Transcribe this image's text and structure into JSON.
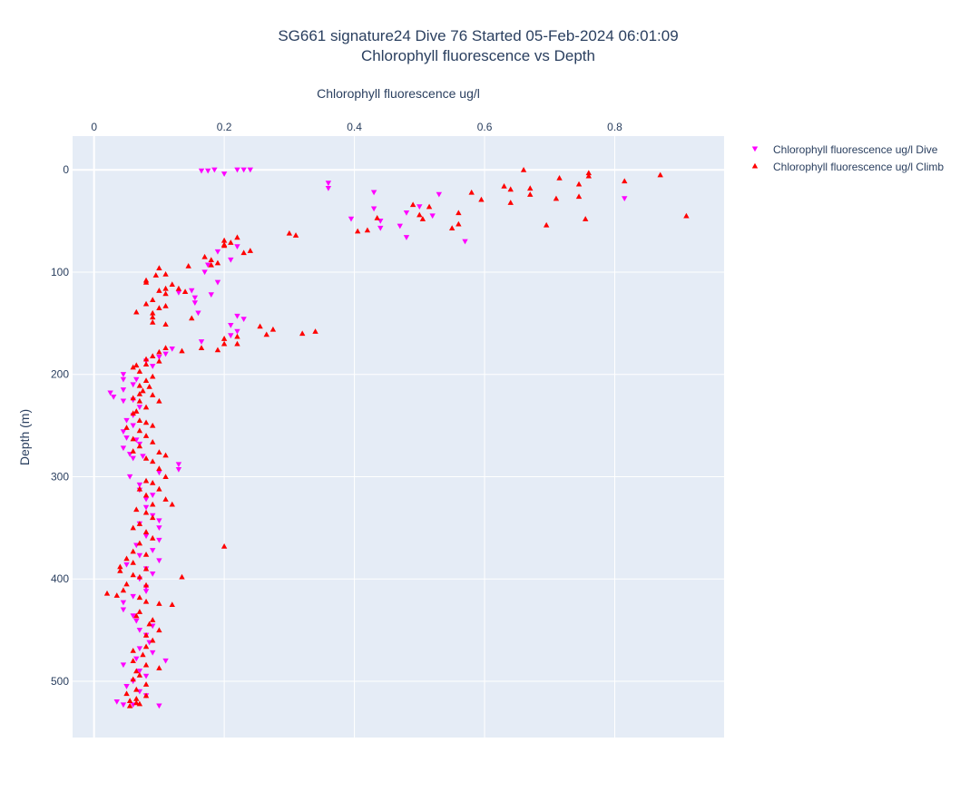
{
  "chart_data": {
    "type": "scatter",
    "title_line1": "SG661 signature24 Dive 76 Started 05-Feb-2024 06:01:09",
    "title_line2": "Chlorophyll fluorescence vs Depth",
    "xlabel": "Chlorophyll fluorescence ug/l",
    "ylabel": "Depth (m)",
    "xlim": [
      -0.033,
      0.968
    ],
    "ylim": [
      555,
      -33
    ],
    "x_axis_position": "top",
    "y_reversed": true,
    "grid": true,
    "legend_position": "top-right",
    "plot_background": "#e5ecf6",
    "xticks": [
      {
        "value": 0,
        "label": "0"
      },
      {
        "value": 0.2,
        "label": "0.2"
      },
      {
        "value": 0.4,
        "label": "0.4"
      },
      {
        "value": 0.6,
        "label": "0.6"
      },
      {
        "value": 0.8,
        "label": "0.8"
      }
    ],
    "yticks": [
      {
        "value": 0,
        "label": "0"
      },
      {
        "value": 100,
        "label": "100"
      },
      {
        "value": 200,
        "label": "200"
      },
      {
        "value": 300,
        "label": "300"
      },
      {
        "value": 400,
        "label": "400"
      },
      {
        "value": 500,
        "label": "500"
      }
    ],
    "series": [
      {
        "name": "Chlorophyll fluorescence ug/l Dive",
        "color": "#ff00ff",
        "marker": "triangle-down",
        "points": [
          [
            0.165,
            1
          ],
          [
            0.175,
            1
          ],
          [
            0.185,
            0
          ],
          [
            0.2,
            4
          ],
          [
            0.22,
            0
          ],
          [
            0.23,
            0
          ],
          [
            0.24,
            0
          ],
          [
            0.36,
            13
          ],
          [
            0.36,
            18
          ],
          [
            0.43,
            22
          ],
          [
            0.43,
            38
          ],
          [
            0.44,
            50
          ],
          [
            0.44,
            57
          ],
          [
            0.47,
            55
          ],
          [
            0.48,
            42
          ],
          [
            0.48,
            66
          ],
          [
            0.5,
            36
          ],
          [
            0.52,
            45
          ],
          [
            0.53,
            24
          ],
          [
            0.57,
            70
          ],
          [
            0.815,
            28
          ],
          [
            0.395,
            48
          ],
          [
            0.22,
            75
          ],
          [
            0.21,
            88
          ],
          [
            0.19,
            80
          ],
          [
            0.175,
            93
          ],
          [
            0.17,
            100
          ],
          [
            0.19,
            110
          ],
          [
            0.15,
            118
          ],
          [
            0.155,
            125
          ],
          [
            0.155,
            130
          ],
          [
            0.16,
            140
          ],
          [
            0.18,
            122
          ],
          [
            0.13,
            120
          ],
          [
            0.22,
            143
          ],
          [
            0.23,
            146
          ],
          [
            0.21,
            152
          ],
          [
            0.22,
            158
          ],
          [
            0.21,
            162
          ],
          [
            0.165,
            168
          ],
          [
            0.12,
            175
          ],
          [
            0.11,
            180
          ],
          [
            0.1,
            183
          ],
          [
            0.09,
            192
          ],
          [
            0.08,
            187
          ],
          [
            0.045,
            200
          ],
          [
            0.045,
            205
          ],
          [
            0.065,
            205
          ],
          [
            0.06,
            210
          ],
          [
            0.025,
            218
          ],
          [
            0.045,
            215
          ],
          [
            0.03,
            222
          ],
          [
            0.045,
            226
          ],
          [
            0.06,
            225
          ],
          [
            0.07,
            232
          ],
          [
            0.06,
            240
          ],
          [
            0.05,
            245
          ],
          [
            0.06,
            250
          ],
          [
            0.045,
            256
          ],
          [
            0.05,
            262
          ],
          [
            0.065,
            264
          ],
          [
            0.07,
            268
          ],
          [
            0.045,
            272
          ],
          [
            0.055,
            278
          ],
          [
            0.06,
            282
          ],
          [
            0.075,
            280
          ],
          [
            0.13,
            288
          ],
          [
            0.13,
            293
          ],
          [
            0.1,
            296
          ],
          [
            0.055,
            300
          ],
          [
            0.07,
            308
          ],
          [
            0.07,
            313
          ],
          [
            0.09,
            318
          ],
          [
            0.08,
            322
          ],
          [
            0.08,
            330
          ],
          [
            0.09,
            338
          ],
          [
            0.1,
            343
          ],
          [
            0.1,
            350
          ],
          [
            0.07,
            346
          ],
          [
            0.08,
            358
          ],
          [
            0.1,
            362
          ],
          [
            0.065,
            367
          ],
          [
            0.09,
            372
          ],
          [
            0.07,
            377
          ],
          [
            0.1,
            382
          ],
          [
            0.05,
            386
          ],
          [
            0.08,
            390
          ],
          [
            0.09,
            395
          ],
          [
            0.07,
            400
          ],
          [
            0.08,
            408
          ],
          [
            0.08,
            412
          ],
          [
            0.06,
            417
          ],
          [
            0.045,
            423
          ],
          [
            0.045,
            430
          ],
          [
            0.06,
            436
          ],
          [
            0.065,
            441
          ],
          [
            0.09,
            446
          ],
          [
            0.07,
            450
          ],
          [
            0.08,
            455
          ],
          [
            0.085,
            462
          ],
          [
            0.07,
            468
          ],
          [
            0.09,
            472
          ],
          [
            0.065,
            478
          ],
          [
            0.11,
            480
          ],
          [
            0.045,
            484
          ],
          [
            0.07,
            490
          ],
          [
            0.08,
            495
          ],
          [
            0.06,
            500
          ],
          [
            0.05,
            505
          ],
          [
            0.07,
            510
          ],
          [
            0.08,
            514
          ],
          [
            0.035,
            520
          ],
          [
            0.045,
            523
          ],
          [
            0.06,
            523
          ],
          [
            0.1,
            524
          ]
        ]
      },
      {
        "name": "Chlorophyll fluorescence ug/l Climb",
        "color": "#ff0000",
        "marker": "triangle-up",
        "points": [
          [
            0.66,
            0
          ],
          [
            0.76,
            3
          ],
          [
            0.76,
            6
          ],
          [
            0.87,
            5
          ],
          [
            0.715,
            8
          ],
          [
            0.815,
            11
          ],
          [
            0.745,
            14
          ],
          [
            0.63,
            16
          ],
          [
            0.67,
            18
          ],
          [
            0.64,
            19
          ],
          [
            0.58,
            22
          ],
          [
            0.67,
            24
          ],
          [
            0.745,
            26
          ],
          [
            0.71,
            28
          ],
          [
            0.595,
            29
          ],
          [
            0.64,
            32
          ],
          [
            0.49,
            34
          ],
          [
            0.515,
            36
          ],
          [
            0.56,
            42
          ],
          [
            0.5,
            44
          ],
          [
            0.435,
            47
          ],
          [
            0.91,
            45
          ],
          [
            0.755,
            48
          ],
          [
            0.505,
            48
          ],
          [
            0.56,
            53
          ],
          [
            0.695,
            54
          ],
          [
            0.55,
            57
          ],
          [
            0.42,
            59
          ],
          [
            0.405,
            60
          ],
          [
            0.3,
            62
          ],
          [
            0.31,
            64
          ],
          [
            0.22,
            66
          ],
          [
            0.2,
            69
          ],
          [
            0.21,
            71
          ],
          [
            0.2,
            74
          ],
          [
            0.24,
            79
          ],
          [
            0.23,
            81
          ],
          [
            0.2,
            73
          ],
          [
            0.17,
            85
          ],
          [
            0.18,
            88
          ],
          [
            0.19,
            91
          ],
          [
            0.18,
            93
          ],
          [
            0.145,
            94
          ],
          [
            0.1,
            96
          ],
          [
            0.11,
            102
          ],
          [
            0.095,
            103
          ],
          [
            0.08,
            108
          ],
          [
            0.08,
            110
          ],
          [
            0.12,
            112
          ],
          [
            0.11,
            116
          ],
          [
            0.1,
            118
          ],
          [
            0.13,
            116
          ],
          [
            0.14,
            119
          ],
          [
            0.11,
            121
          ],
          [
            0.09,
            127
          ],
          [
            0.08,
            131
          ],
          [
            0.11,
            133
          ],
          [
            0.1,
            135
          ],
          [
            0.065,
            139
          ],
          [
            0.09,
            140
          ],
          [
            0.09,
            144
          ],
          [
            0.09,
            149
          ],
          [
            0.11,
            151
          ],
          [
            0.15,
            145
          ],
          [
            0.255,
            153
          ],
          [
            0.275,
            156
          ],
          [
            0.265,
            161
          ],
          [
            0.32,
            160
          ],
          [
            0.34,
            158
          ],
          [
            0.22,
            163
          ],
          [
            0.2,
            165
          ],
          [
            0.22,
            170
          ],
          [
            0.2,
            170
          ],
          [
            0.165,
            174
          ],
          [
            0.19,
            176
          ],
          [
            0.135,
            177
          ],
          [
            0.11,
            174
          ],
          [
            0.1,
            178
          ],
          [
            0.09,
            182
          ],
          [
            0.08,
            185
          ],
          [
            0.1,
            187
          ],
          [
            0.08,
            190
          ],
          [
            0.065,
            191
          ],
          [
            0.06,
            193
          ],
          [
            0.07,
            197
          ],
          [
            0.09,
            202
          ],
          [
            0.08,
            206
          ],
          [
            0.07,
            211
          ],
          [
            0.085,
            212
          ],
          [
            0.075,
            216
          ],
          [
            0.07,
            219
          ],
          [
            0.09,
            220
          ],
          [
            0.06,
            223
          ],
          [
            0.07,
            226
          ],
          [
            0.1,
            226
          ],
          [
            0.08,
            232
          ],
          [
            0.065,
            236
          ],
          [
            0.06,
            238
          ],
          [
            0.07,
            245
          ],
          [
            0.08,
            247
          ],
          [
            0.09,
            250
          ],
          [
            0.05,
            252
          ],
          [
            0.07,
            255
          ],
          [
            0.08,
            260
          ],
          [
            0.06,
            263
          ],
          [
            0.09,
            266
          ],
          [
            0.07,
            270
          ],
          [
            0.06,
            275
          ],
          [
            0.1,
            276
          ],
          [
            0.11,
            279
          ],
          [
            0.08,
            282
          ],
          [
            0.09,
            285
          ],
          [
            0.1,
            292
          ],
          [
            0.11,
            300
          ],
          [
            0.08,
            304
          ],
          [
            0.09,
            306
          ],
          [
            0.07,
            312
          ],
          [
            0.1,
            312
          ],
          [
            0.08,
            318
          ],
          [
            0.11,
            322
          ],
          [
            0.09,
            327
          ],
          [
            0.12,
            327
          ],
          [
            0.065,
            332
          ],
          [
            0.08,
            335
          ],
          [
            0.09,
            340
          ],
          [
            0.07,
            346
          ],
          [
            0.06,
            350
          ],
          [
            0.08,
            354
          ],
          [
            0.09,
            360
          ],
          [
            0.07,
            365
          ],
          [
            0.2,
            368
          ],
          [
            0.06,
            373
          ],
          [
            0.08,
            376
          ],
          [
            0.05,
            380
          ],
          [
            0.06,
            384
          ],
          [
            0.04,
            388
          ],
          [
            0.08,
            390
          ],
          [
            0.04,
            392
          ],
          [
            0.06,
            396
          ],
          [
            0.07,
            398
          ],
          [
            0.135,
            398
          ],
          [
            0.05,
            405
          ],
          [
            0.08,
            406
          ],
          [
            0.045,
            411
          ],
          [
            0.02,
            414
          ],
          [
            0.035,
            416
          ],
          [
            0.07,
            418
          ],
          [
            0.08,
            422
          ],
          [
            0.1,
            424
          ],
          [
            0.12,
            425
          ],
          [
            0.07,
            432
          ],
          [
            0.065,
            436
          ],
          [
            0.09,
            440
          ],
          [
            0.085,
            444
          ],
          [
            0.1,
            450
          ],
          [
            0.08,
            455
          ],
          [
            0.09,
            460
          ],
          [
            0.08,
            466
          ],
          [
            0.06,
            470
          ],
          [
            0.075,
            474
          ],
          [
            0.06,
            480
          ],
          [
            0.08,
            484
          ],
          [
            0.1,
            487
          ],
          [
            0.065,
            490
          ],
          [
            0.07,
            494
          ],
          [
            0.06,
            498
          ],
          [
            0.08,
            503
          ],
          [
            0.065,
            508
          ],
          [
            0.05,
            512
          ],
          [
            0.08,
            514
          ],
          [
            0.065,
            517
          ],
          [
            0.055,
            519
          ],
          [
            0.065,
            521
          ],
          [
            0.07,
            522
          ],
          [
            0.055,
            524
          ]
        ]
      }
    ]
  }
}
